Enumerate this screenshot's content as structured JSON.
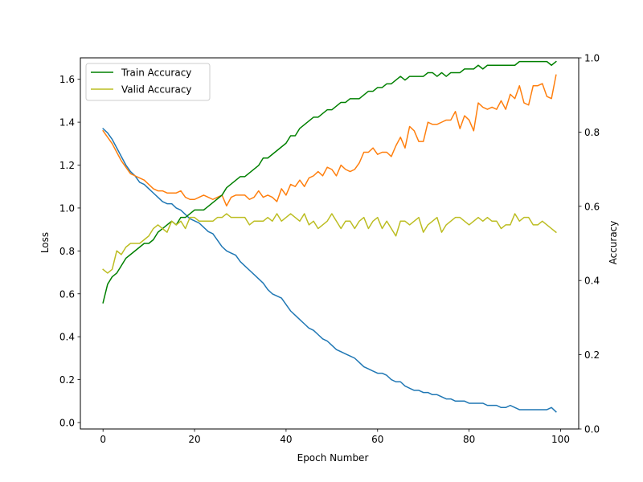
{
  "chart_data": {
    "type": "line",
    "xlabel": "Epoch Number",
    "ylabel_left": "Loss",
    "ylabel_right": "Accuracy",
    "xlim": [
      -4.95,
      103.95
    ],
    "ylim_left": [
      -0.03,
      1.7
    ],
    "ylim_right": [
      0.0,
      1.0
    ],
    "xticks": [
      0,
      20,
      40,
      60,
      80,
      100
    ],
    "yticks_left": [
      0.0,
      0.2,
      0.4,
      0.6,
      0.8,
      1.0,
      1.2,
      1.4,
      1.6
    ],
    "yticks_right": [
      0.0,
      0.2,
      0.4,
      0.6,
      0.8,
      1.0
    ],
    "grid": false,
    "legend_position": "top-left",
    "series": [
      {
        "axis": "left",
        "color": "#1f77b4",
        "values": [
          1.37,
          1.35,
          1.32,
          1.28,
          1.24,
          1.2,
          1.17,
          1.15,
          1.12,
          1.11,
          1.09,
          1.07,
          1.05,
          1.03,
          1.02,
          1.02,
          1.0,
          0.99,
          0.97,
          0.95,
          0.94,
          0.93,
          0.91,
          0.89,
          0.88,
          0.85,
          0.82,
          0.8,
          0.79,
          0.78,
          0.75,
          0.73,
          0.71,
          0.69,
          0.67,
          0.65,
          0.62,
          0.6,
          0.59,
          0.58,
          0.55,
          0.52,
          0.5,
          0.48,
          0.46,
          0.44,
          0.43,
          0.41,
          0.39,
          0.38,
          0.36,
          0.34,
          0.33,
          0.32,
          0.31,
          0.3,
          0.28,
          0.26,
          0.25,
          0.24,
          0.23,
          0.23,
          0.22,
          0.2,
          0.19,
          0.19,
          0.17,
          0.16,
          0.15,
          0.15,
          0.14,
          0.14,
          0.13,
          0.13,
          0.12,
          0.11,
          0.11,
          0.1,
          0.1,
          0.1,
          0.09,
          0.09,
          0.09,
          0.09,
          0.08,
          0.08,
          0.08,
          0.07,
          0.07,
          0.08,
          0.07,
          0.06,
          0.06,
          0.06,
          0.06,
          0.06,
          0.06,
          0.06,
          0.07,
          0.05
        ]
      },
      {
        "axis": "left",
        "color": "#ff7f0e",
        "values": [
          1.36,
          1.33,
          1.3,
          1.26,
          1.22,
          1.19,
          1.16,
          1.15,
          1.14,
          1.13,
          1.11,
          1.09,
          1.08,
          1.08,
          1.07,
          1.07,
          1.07,
          1.08,
          1.05,
          1.04,
          1.04,
          1.05,
          1.06,
          1.05,
          1.04,
          1.05,
          1.06,
          1.01,
          1.05,
          1.06,
          1.06,
          1.06,
          1.04,
          1.05,
          1.08,
          1.05,
          1.06,
          1.05,
          1.03,
          1.09,
          1.06,
          1.11,
          1.1,
          1.13,
          1.1,
          1.14,
          1.15,
          1.17,
          1.15,
          1.19,
          1.18,
          1.15,
          1.2,
          1.18,
          1.17,
          1.18,
          1.21,
          1.26,
          1.26,
          1.28,
          1.25,
          1.26,
          1.26,
          1.24,
          1.29,
          1.33,
          1.28,
          1.38,
          1.36,
          1.31,
          1.31,
          1.4,
          1.39,
          1.39,
          1.4,
          1.41,
          1.41,
          1.45,
          1.37,
          1.43,
          1.41,
          1.36,
          1.49,
          1.47,
          1.46,
          1.47,
          1.46,
          1.5,
          1.46,
          1.53,
          1.51,
          1.57,
          1.49,
          1.48,
          1.57,
          1.57,
          1.58,
          1.52,
          1.51,
          1.62
        ]
      },
      {
        "axis": "right",
        "color": "#008000",
        "name": "Train Accuracy",
        "values": [
          0.34,
          0.39,
          0.41,
          0.42,
          0.44,
          0.46,
          0.47,
          0.48,
          0.49,
          0.5,
          0.5,
          0.51,
          0.53,
          0.54,
          0.55,
          0.56,
          0.55,
          0.57,
          0.57,
          0.58,
          0.59,
          0.59,
          0.59,
          0.6,
          0.61,
          0.62,
          0.63,
          0.65,
          0.66,
          0.67,
          0.68,
          0.68,
          0.69,
          0.7,
          0.71,
          0.73,
          0.73,
          0.74,
          0.75,
          0.76,
          0.77,
          0.79,
          0.79,
          0.81,
          0.82,
          0.83,
          0.84,
          0.84,
          0.85,
          0.86,
          0.86,
          0.87,
          0.88,
          0.88,
          0.89,
          0.89,
          0.89,
          0.9,
          0.91,
          0.91,
          0.92,
          0.92,
          0.93,
          0.93,
          0.94,
          0.95,
          0.94,
          0.95,
          0.95,
          0.95,
          0.95,
          0.96,
          0.96,
          0.95,
          0.96,
          0.95,
          0.96,
          0.96,
          0.96,
          0.97,
          0.97,
          0.97,
          0.98,
          0.97,
          0.98,
          0.98,
          0.98,
          0.98,
          0.98,
          0.98,
          0.98,
          0.99,
          0.99,
          0.99,
          0.99,
          0.99,
          0.99,
          0.99,
          0.98,
          0.99
        ]
      },
      {
        "axis": "right",
        "color": "#bcbd22",
        "name": "Valid Accuracy",
        "values": [
          0.43,
          0.42,
          0.43,
          0.48,
          0.47,
          0.49,
          0.5,
          0.5,
          0.5,
          0.51,
          0.52,
          0.54,
          0.55,
          0.54,
          0.53,
          0.56,
          0.55,
          0.56,
          0.54,
          0.57,
          0.57,
          0.56,
          0.56,
          0.56,
          0.56,
          0.57,
          0.57,
          0.58,
          0.57,
          0.57,
          0.57,
          0.57,
          0.55,
          0.56,
          0.56,
          0.56,
          0.57,
          0.56,
          0.58,
          0.56,
          0.57,
          0.58,
          0.57,
          0.56,
          0.58,
          0.55,
          0.56,
          0.54,
          0.55,
          0.56,
          0.58,
          0.56,
          0.54,
          0.56,
          0.56,
          0.54,
          0.56,
          0.57,
          0.54,
          0.56,
          0.57,
          0.54,
          0.56,
          0.54,
          0.52,
          0.56,
          0.56,
          0.55,
          0.56,
          0.57,
          0.53,
          0.55,
          0.56,
          0.57,
          0.53,
          0.55,
          0.56,
          0.57,
          0.57,
          0.56,
          0.55,
          0.56,
          0.57,
          0.56,
          0.57,
          0.56,
          0.56,
          0.54,
          0.55,
          0.55,
          0.58,
          0.56,
          0.57,
          0.57,
          0.55,
          0.55,
          0.56,
          0.55,
          0.54,
          0.53
        ]
      }
    ]
  }
}
